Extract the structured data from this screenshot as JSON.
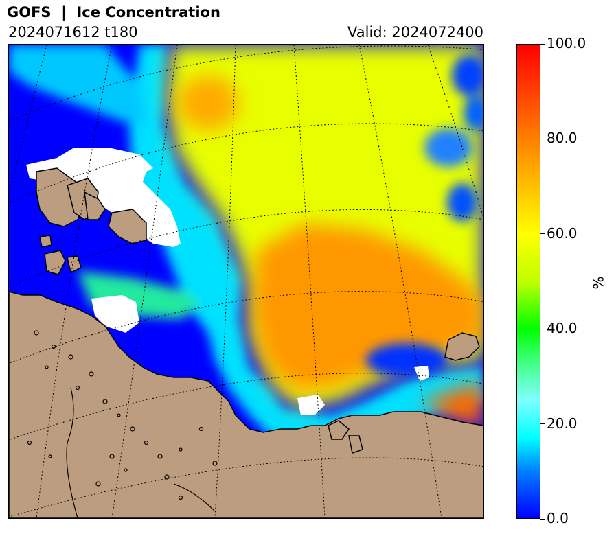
{
  "header": {
    "title": "GOFS  |  Ice Concentration",
    "run_label": "2024071612 t180",
    "valid_label": "Valid: 2024072400"
  },
  "colorbar": {
    "unit": "%",
    "min": 0,
    "max": 100,
    "ticks": [
      "0.0",
      "20.0",
      "40.0",
      "60.0",
      "80.0",
      "100.0"
    ],
    "tick_values": [
      0,
      20,
      40,
      60,
      80,
      100
    ],
    "stops": [
      {
        "value": 0,
        "color": "#0000ff"
      },
      {
        "value": 10,
        "color": "#0080ff"
      },
      {
        "value": 17,
        "color": "#00ffff"
      },
      {
        "value": 25,
        "color": "#80ffff"
      },
      {
        "value": 33,
        "color": "#40ff80"
      },
      {
        "value": 40,
        "color": "#00ff00"
      },
      {
        "value": 50,
        "color": "#c0ff00"
      },
      {
        "value": 60,
        "color": "#ffff00"
      },
      {
        "value": 70,
        "color": "#ffc000"
      },
      {
        "value": 80,
        "color": "#ff8000"
      },
      {
        "value": 90,
        "color": "#ff4000"
      },
      {
        "value": 100,
        "color": "#ff0000"
      }
    ]
  },
  "map": {
    "land_color": "#bd9d80",
    "no_data_color": "#ffffff"
  }
}
